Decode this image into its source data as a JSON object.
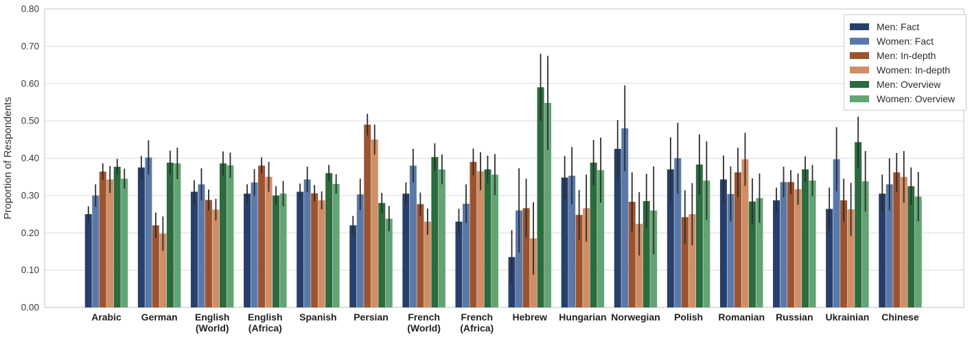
{
  "chart_data": {
    "type": "bar",
    "title": "",
    "xlabel": "",
    "ylabel": "Proportion of Respondents",
    "ylim": [
      0.0,
      0.8
    ],
    "yticks": [
      0.0,
      0.1,
      0.2,
      0.3,
      0.4,
      0.5,
      0.6,
      0.7,
      0.8
    ],
    "grid": true,
    "legend_position": "upper right",
    "categories": [
      "Arabic",
      "German",
      "English\n(World)",
      "English\n(Africa)",
      "Spanish",
      "Persian",
      "French\n(World)",
      "French\n(Africa)",
      "Hebrew",
      "Hungarian",
      "Norwegian",
      "Polish",
      "Romanian",
      "Russian",
      "Ukrainian",
      "Chinese"
    ],
    "series": [
      {
        "name": "Men: Fact",
        "color": "#27406b",
        "values": [
          0.25,
          0.375,
          0.31,
          0.305,
          0.31,
          0.22,
          0.305,
          0.23,
          0.135,
          0.348,
          0.425,
          0.37,
          0.343,
          0.287,
          0.264,
          0.305
        ],
        "errors": [
          0.021,
          0.031,
          0.031,
          0.025,
          0.022,
          0.025,
          0.03,
          0.034,
          0.072,
          0.058,
          0.077,
          0.086,
          0.064,
          0.034,
          0.057,
          0.051
        ]
      },
      {
        "name": "Women: Fact",
        "color": "#5a79a9",
        "values": [
          0.3,
          0.402,
          0.33,
          0.335,
          0.343,
          0.303,
          0.38,
          0.278,
          0.26,
          0.353,
          0.48,
          0.4,
          0.304,
          0.336,
          0.397,
          0.33
        ],
        "errors": [
          0.03,
          0.046,
          0.043,
          0.036,
          0.034,
          0.042,
          0.045,
          0.052,
          0.113,
          0.077,
          0.115,
          0.095,
          0.074,
          0.041,
          0.086,
          0.07
        ]
      },
      {
        "name": "Men: In-depth",
        "color": "#9c5430",
        "values": [
          0.364,
          0.22,
          0.288,
          0.38,
          0.306,
          0.49,
          0.277,
          0.39,
          0.266,
          0.248,
          0.283,
          0.242,
          0.362,
          0.336,
          0.287,
          0.362
        ],
        "errors": [
          0.022,
          0.034,
          0.028,
          0.022,
          0.022,
          0.029,
          0.031,
          0.036,
          0.079,
          0.067,
          0.079,
          0.072,
          0.066,
          0.032,
          0.058,
          0.052
        ]
      },
      {
        "name": "Women: In-depth",
        "color": "#d08e66",
        "values": [
          0.343,
          0.198,
          0.262,
          0.35,
          0.287,
          0.45,
          0.23,
          0.365,
          0.185,
          0.266,
          0.224,
          0.25,
          0.397,
          0.317,
          0.263,
          0.35
        ],
        "errors": [
          0.036,
          0.046,
          0.029,
          0.04,
          0.024,
          0.04,
          0.035,
          0.051,
          0.097,
          0.09,
          0.085,
          0.083,
          0.071,
          0.042,
          0.071,
          0.069
        ]
      },
      {
        "name": "Men: Overview",
        "color": "#2c6b3e",
        "values": [
          0.377,
          0.388,
          0.386,
          0.3,
          0.36,
          0.28,
          0.403,
          0.37,
          0.59,
          0.388,
          0.285,
          0.383,
          0.284,
          0.37,
          0.443,
          0.325
        ],
        "errors": [
          0.021,
          0.032,
          0.032,
          0.025,
          0.022,
          0.027,
          0.037,
          0.037,
          0.09,
          0.061,
          0.073,
          0.081,
          0.062,
          0.035,
          0.068,
          0.05
        ]
      },
      {
        "name": "Women: Overview",
        "color": "#62a473",
        "values": [
          0.345,
          0.386,
          0.381,
          0.305,
          0.331,
          0.238,
          0.37,
          0.356,
          0.548,
          0.368,
          0.26,
          0.34,
          0.293,
          0.34,
          0.338,
          0.297
        ],
        "errors": [
          0.027,
          0.042,
          0.034,
          0.034,
          0.026,
          0.034,
          0.04,
          0.055,
          0.126,
          0.087,
          0.118,
          0.105,
          0.066,
          0.042,
          0.081,
          0.066
        ]
      }
    ]
  },
  "style": {
    "grid_color": "#d9d9d9",
    "spine_color": "#cccccc",
    "errorbar_color": "#2b2b2b",
    "background": "#ffffff"
  }
}
